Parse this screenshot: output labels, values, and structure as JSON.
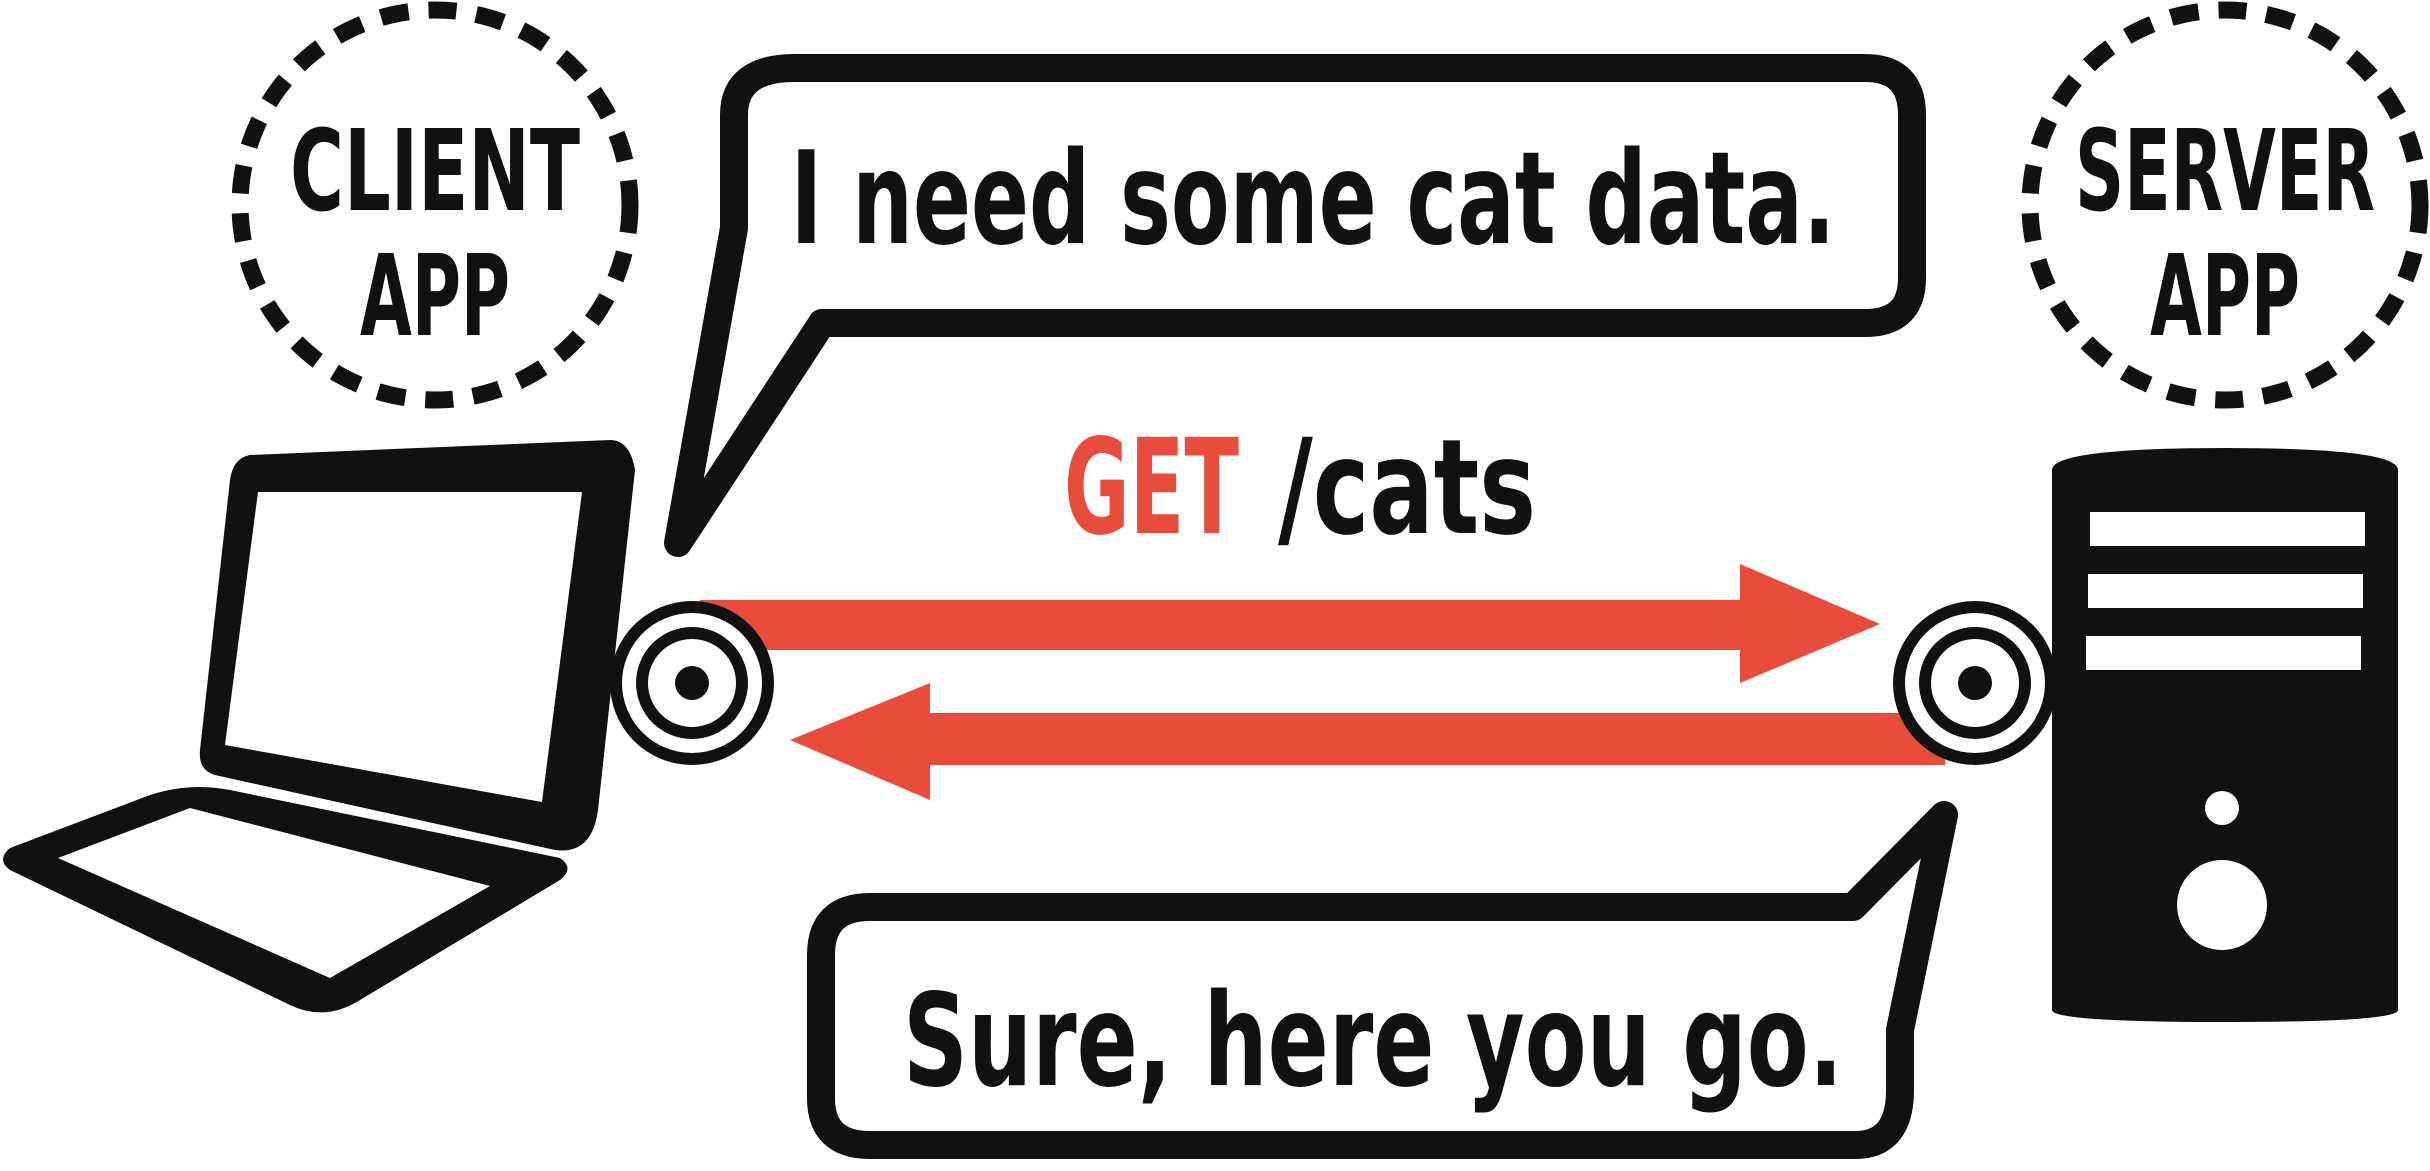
{
  "client_badge": {
    "line1": "CLIENT",
    "line2": "APP"
  },
  "server_badge": {
    "line1": "SERVER",
    "line2": "APP"
  },
  "request_bubble": {
    "text": "I need some cat data."
  },
  "response_bubble": {
    "text": "Sure, here you go."
  },
  "request_line": {
    "method": "GET",
    "path": "/cats"
  },
  "colors": {
    "ink": "#111111",
    "accent": "#ea4c3c",
    "background": "#ffffff"
  },
  "icons": {
    "client": "laptop-icon",
    "server": "server-tower-icon"
  }
}
